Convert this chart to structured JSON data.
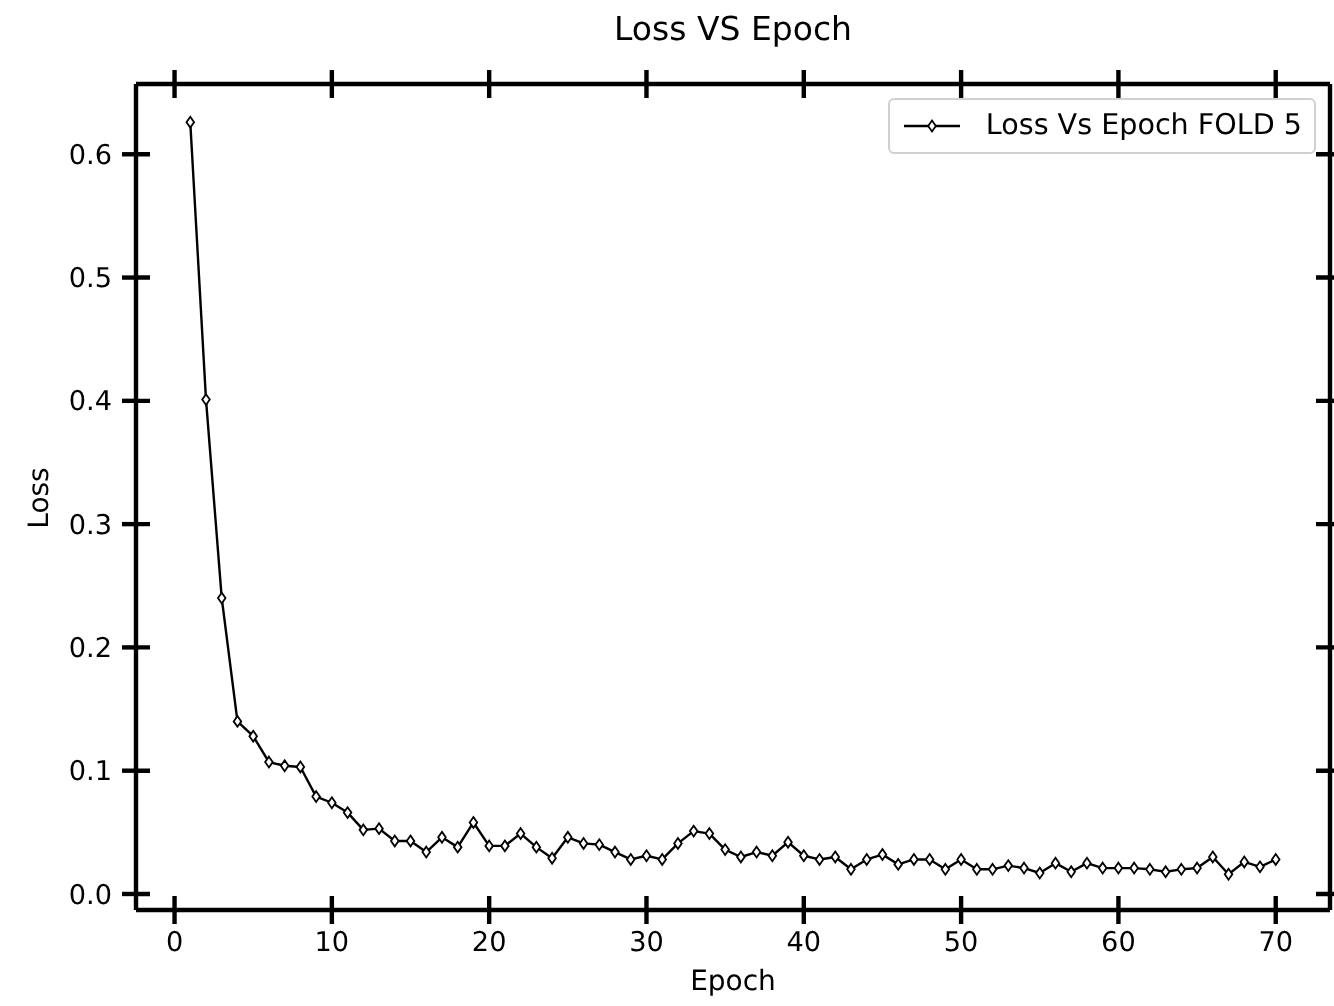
{
  "chart_data": {
    "type": "line",
    "title": "Loss VS Epoch",
    "xlabel": "Epoch",
    "ylabel": "Loss",
    "x": [
      1,
      2,
      3,
      4,
      5,
      6,
      7,
      8,
      9,
      10,
      11,
      12,
      13,
      14,
      15,
      16,
      17,
      18,
      19,
      20,
      21,
      22,
      23,
      24,
      25,
      26,
      27,
      28,
      29,
      30,
      31,
      32,
      33,
      34,
      35,
      36,
      37,
      38,
      39,
      40,
      41,
      42,
      43,
      44,
      45,
      46,
      47,
      48,
      49,
      50,
      51,
      52,
      53,
      54,
      55,
      56,
      57,
      58,
      59,
      60,
      61,
      62,
      63,
      64,
      65,
      66,
      67,
      68,
      69,
      70
    ],
    "series": [
      {
        "name": "Loss Vs Epoch FOLD 5",
        "color": "#000000",
        "values": [
          0.626,
          0.401,
          0.24,
          0.14,
          0.128,
          0.107,
          0.104,
          0.103,
          0.079,
          0.074,
          0.066,
          0.052,
          0.053,
          0.043,
          0.043,
          0.034,
          0.046,
          0.038,
          0.058,
          0.039,
          0.039,
          0.049,
          0.038,
          0.029,
          0.046,
          0.041,
          0.04,
          0.034,
          0.028,
          0.031,
          0.028,
          0.041,
          0.051,
          0.049,
          0.036,
          0.03,
          0.034,
          0.031,
          0.042,
          0.031,
          0.028,
          0.03,
          0.02,
          0.028,
          0.032,
          0.024,
          0.028,
          0.028,
          0.02,
          0.028,
          0.02,
          0.02,
          0.023,
          0.021,
          0.017,
          0.025,
          0.018,
          0.025,
          0.021,
          0.021,
          0.021,
          0.02,
          0.018,
          0.02,
          0.021,
          0.03,
          0.016,
          0.026,
          0.022,
          0.028
        ]
      }
    ],
    "xlim": [
      -2.45,
      73.45
    ],
    "xticks": [
      0,
      10,
      20,
      30,
      40,
      50,
      60,
      70
    ],
    "ylim": [
      -0.013,
      0.657
    ],
    "yticks": [
      {
        "value": 0,
        "label": "0.0"
      },
      0.1,
      0.2,
      0.3,
      0.4,
      0.5,
      0.6
    ],
    "grid": false,
    "legend": "top right",
    "marker": "diamond",
    "line_style": "solid"
  }
}
